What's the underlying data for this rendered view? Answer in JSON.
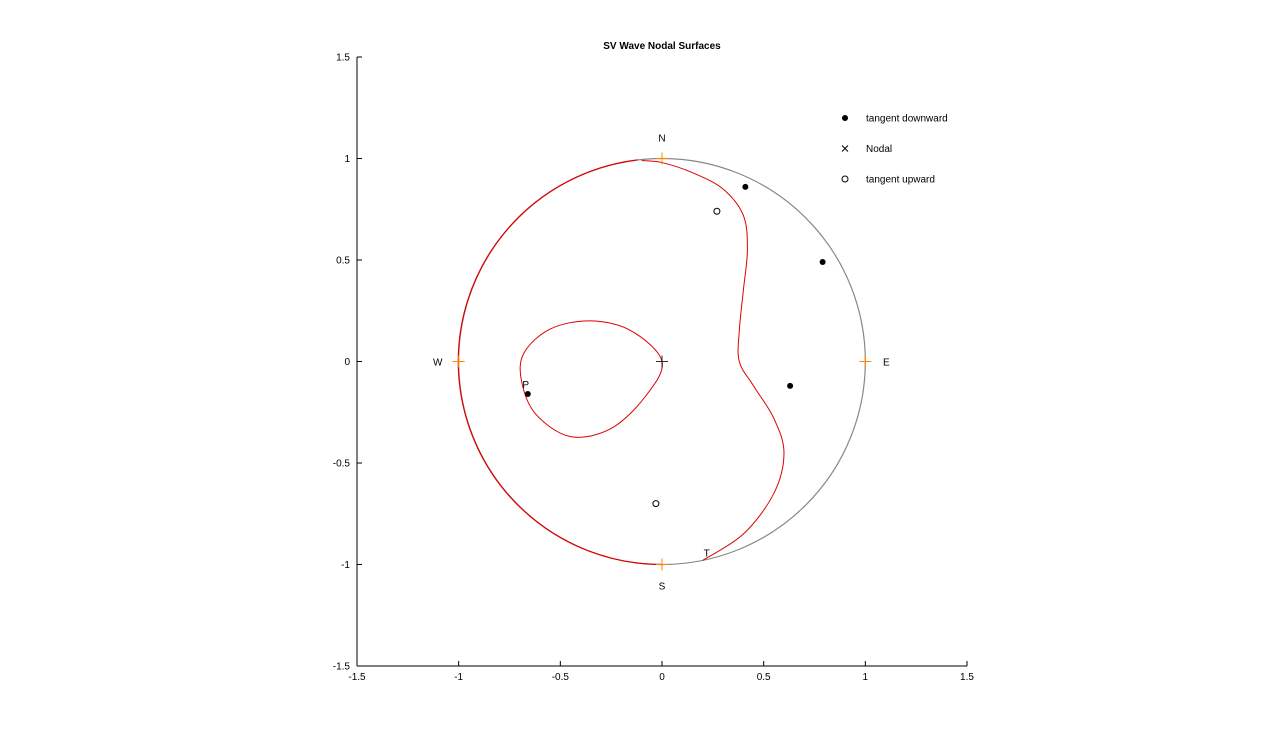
{
  "chart_data": {
    "type": "scatter",
    "title": "SV Wave Nodal Surfaces",
    "xlabel": "",
    "ylabel": "",
    "xlim": [
      -1.5,
      1.5
    ],
    "ylim": [
      -1.5,
      1.5
    ],
    "x_ticks": [
      -1.5,
      -1,
      -0.5,
      0,
      0.5,
      1,
      1.5
    ],
    "y_ticks": [
      -1.5,
      -1,
      -0.5,
      0,
      0.5,
      1,
      1.5
    ],
    "x_tick_labels": [
      "-1.5",
      "-1",
      "-0.5",
      "0",
      "0.5",
      "1",
      "1.5"
    ],
    "y_tick_labels": [
      "-1.5",
      "-1",
      "-0.5",
      "0",
      "0.5",
      "1",
      "1.5"
    ],
    "grid": false,
    "legend_position": "top-right",
    "legend": [
      {
        "label": "tangent downward",
        "marker": "filled-circle"
      },
      {
        "label": "Nodal",
        "marker": "x"
      },
      {
        "label": "tangent upward",
        "marker": "open-circle"
      }
    ],
    "compass": [
      {
        "label": "N",
        "x": 0,
        "y": 1
      },
      {
        "label": "E",
        "x": 1,
        "y": 0
      },
      {
        "label": "S",
        "x": 0,
        "y": -1
      },
      {
        "label": "W",
        "x": -1,
        "y": 0
      }
    ],
    "axes_labels": [
      {
        "label": "P",
        "x": -0.69,
        "y": -0.14
      },
      {
        "label": "T",
        "x": 0.2,
        "y": -0.97
      }
    ],
    "series": [
      {
        "name": "tangent downward",
        "marker": "filled-circle",
        "points": [
          [
            0.41,
            0.86
          ],
          [
            0.79,
            0.49
          ],
          [
            0.63,
            -0.12
          ],
          [
            -0.66,
            -0.16
          ]
        ]
      },
      {
        "name": "Nodal",
        "marker": "x",
        "points": []
      },
      {
        "name": "tangent upward",
        "marker": "open-circle",
        "points": [
          [
            0.27,
            0.74
          ],
          [
            -0.03,
            -0.7
          ]
        ]
      }
    ],
    "nodal_curves": [
      {
        "color": "#dd0000",
        "closed": false,
        "points": [
          [
            0.2,
            -0.98
          ],
          [
            0.4,
            -0.85
          ],
          [
            0.55,
            -0.65
          ],
          [
            0.6,
            -0.45
          ],
          [
            0.55,
            -0.28
          ],
          [
            0.45,
            -0.12
          ],
          [
            0.38,
            0.0
          ],
          [
            0.38,
            0.15
          ],
          [
            0.4,
            0.35
          ],
          [
            0.42,
            0.55
          ],
          [
            0.4,
            0.72
          ],
          [
            0.3,
            0.85
          ],
          [
            0.15,
            0.93
          ],
          [
            0.0,
            0.98
          ],
          [
            -0.1,
            0.99
          ]
        ]
      },
      {
        "color": "#dd0000",
        "closed": true,
        "points": [
          [
            0.0,
            0.0
          ],
          [
            -0.15,
            0.15
          ],
          [
            -0.35,
            0.2
          ],
          [
            -0.55,
            0.16
          ],
          [
            -0.68,
            0.04
          ],
          [
            -0.69,
            -0.1
          ],
          [
            -0.62,
            -0.26
          ],
          [
            -0.45,
            -0.37
          ],
          [
            -0.25,
            -0.33
          ],
          [
            -0.08,
            -0.17
          ]
        ]
      }
    ],
    "colors": {
      "boundary": "#888888",
      "nodal": "#dd0000",
      "compass": "#ff8800",
      "axes": "#000000"
    }
  }
}
